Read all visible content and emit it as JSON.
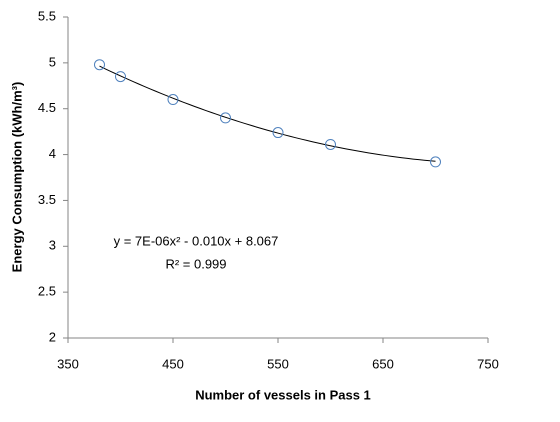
{
  "chart_data": {
    "type": "scatter",
    "x_label": "Number of vessels in Pass 1",
    "y_label": "Energy Consumption (kWh/m³)",
    "series": [
      {
        "color": "#4f81bd",
        "x": [
          380,
          400,
          450,
          500,
          550,
          600,
          700
        ],
        "values": [
          4.98,
          4.85,
          4.6,
          4.4,
          4.24,
          4.11,
          3.92
        ]
      }
    ],
    "trendline": {
      "type": "polynomial",
      "order": 2,
      "color": "#000000"
    },
    "annotations": [
      "y = 7E-06x² - 0.010x + 8.067",
      "R² = 0.999"
    ],
    "xlim": [
      350,
      750
    ],
    "xticks": [
      350,
      450,
      550,
      650,
      750
    ],
    "ylim": [
      2,
      5.5
    ],
    "yticks": [
      2,
      2.5,
      3,
      3.5,
      4,
      4.5,
      5,
      5.5
    ],
    "grid": false
  }
}
